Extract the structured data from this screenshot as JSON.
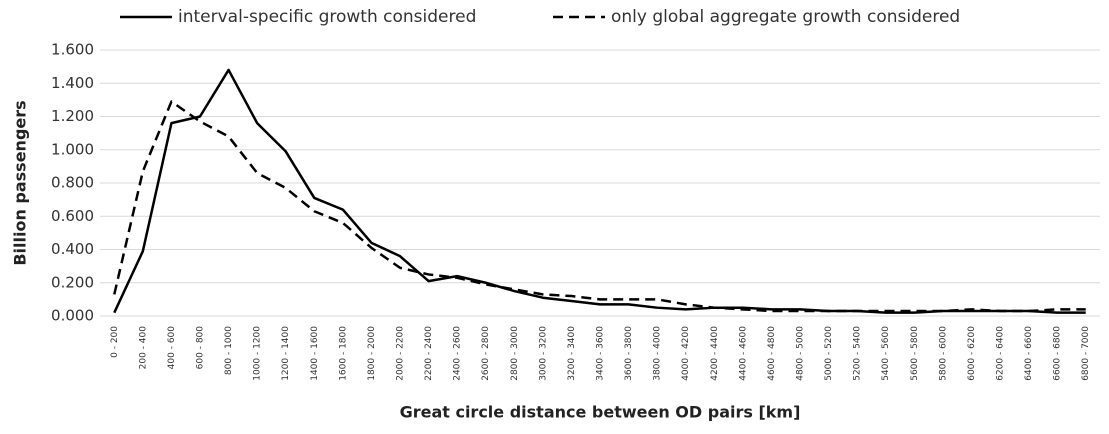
{
  "chart_data": {
    "type": "line",
    "x_label": "Great circle distance between OD pairs [km]",
    "y_label": "Billion passengers",
    "categories": [
      "0 - 200",
      "200 - 400",
      "400 - 600",
      "600 - 800",
      "800 - 1000",
      "1000 - 1200",
      "1200 - 1400",
      "1400 - 1600",
      "1600 - 1800",
      "1800 - 2000",
      "2000 - 2200",
      "2200 - 2400",
      "2400 - 2600",
      "2600 - 2800",
      "2800 - 3000",
      "3000 - 3200",
      "3200 - 3400",
      "3400 - 3600",
      "3600 - 3800",
      "3800 - 4000",
      "4000 - 4200",
      "4200 - 4400",
      "4400 - 4600",
      "4600 - 4800",
      "4800 - 5000",
      "5000 - 5200",
      "5200 - 5400",
      "5400 - 5600",
      "5600 - 5800",
      "5800 - 6000",
      "6000 - 6200",
      "6200 - 6400",
      "6400 - 6600",
      "6600 - 6800",
      "6800 - 7000"
    ],
    "series": [
      {
        "name": "interval-specific growth considered",
        "color": "#000000",
        "style": "solid",
        "values": [
          0.02,
          0.39,
          1.16,
          1.2,
          1.48,
          1.16,
          0.99,
          0.71,
          0.64,
          0.44,
          0.36,
          0.21,
          0.24,
          0.2,
          0.15,
          0.11,
          0.09,
          0.07,
          0.07,
          0.05,
          0.04,
          0.05,
          0.05,
          0.04,
          0.04,
          0.03,
          0.03,
          0.02,
          0.02,
          0.03,
          0.03,
          0.03,
          0.03,
          0.02,
          0.02
        ]
      },
      {
        "name": "only global aggregate growth considered",
        "color": "#000000",
        "style": "dashed",
        "values": [
          0.13,
          0.87,
          1.29,
          1.17,
          1.08,
          0.86,
          0.77,
          0.63,
          0.56,
          0.41,
          0.29,
          0.25,
          0.23,
          0.19,
          0.16,
          0.13,
          0.12,
          0.1,
          0.1,
          0.1,
          0.07,
          0.05,
          0.04,
          0.03,
          0.03,
          0.03,
          0.03,
          0.03,
          0.03,
          0.03,
          0.04,
          0.03,
          0.03,
          0.04,
          0.04
        ]
      }
    ],
    "ylim": [
      0,
      1.6
    ],
    "yticks": [
      {
        "value": 0,
        "label": "0.000"
      },
      {
        "value": 0.2,
        "label": "0.200"
      },
      {
        "value": 0.4,
        "label": "0.400"
      },
      {
        "value": 0.6,
        "label": "0.600"
      },
      {
        "value": 0.8,
        "label": "0.800"
      },
      {
        "value": 1.0,
        "label": "1.000"
      },
      {
        "value": 1.2,
        "label": "1.200"
      },
      {
        "value": 1.4,
        "label": "1.400"
      },
      {
        "value": 1.6,
        "label": "1.600"
      }
    ],
    "grid": true,
    "legend": "top"
  }
}
